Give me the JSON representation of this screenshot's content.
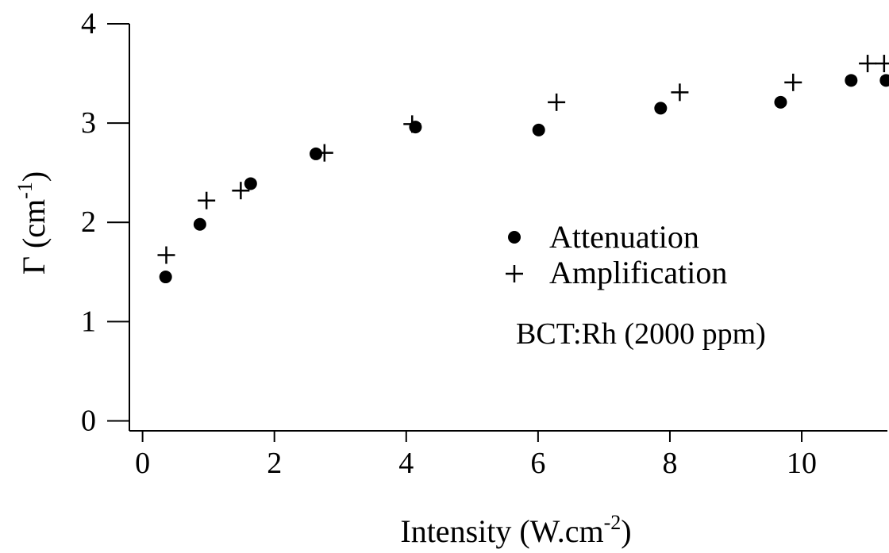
{
  "chart_data": {
    "type": "scatter",
    "title": "",
    "xlabel": "Intensity (W.cm",
    "xlabel_sup": "-2",
    "xlabel_end": ")",
    "ylabel": "Γ (cm",
    "ylabel_sup": "-1",
    "ylabel_end": ")",
    "xlim": [
      -0.2,
      11.3
    ],
    "ylim": [
      -0.1,
      4.0
    ],
    "xticks": [
      0,
      2,
      4,
      6,
      8,
      10
    ],
    "yticks": [
      0,
      1,
      2,
      3,
      4
    ],
    "xtick_labels": [
      "0",
      "2",
      "4",
      "6",
      "8",
      "10"
    ],
    "ytick_labels": [
      "0",
      "1",
      "2",
      "3",
      "4"
    ],
    "grid": false,
    "legend_position": "center-right",
    "annotation": "BCT:Rh (2000 ppm)",
    "series": [
      {
        "name": "Attenuation",
        "marker": "filled-circle",
        "color": "#000000",
        "x": [
          0.35,
          0.87,
          1.64,
          2.63,
          4.14,
          6.01,
          7.86,
          9.68,
          10.75,
          11.28
        ],
        "y": [
          1.45,
          1.98,
          2.39,
          2.69,
          2.96,
          2.93,
          3.15,
          3.21,
          3.43,
          3.43
        ]
      },
      {
        "name": "Amplification",
        "marker": "plus",
        "color": "#000000",
        "x": [
          0.36,
          0.97,
          1.49,
          2.76,
          4.09,
          6.28,
          8.15,
          9.87,
          11.0,
          11.25
        ],
        "y": [
          1.67,
          2.22,
          2.32,
          2.7,
          2.99,
          3.21,
          3.31,
          3.41,
          3.6,
          3.6
        ]
      }
    ]
  }
}
